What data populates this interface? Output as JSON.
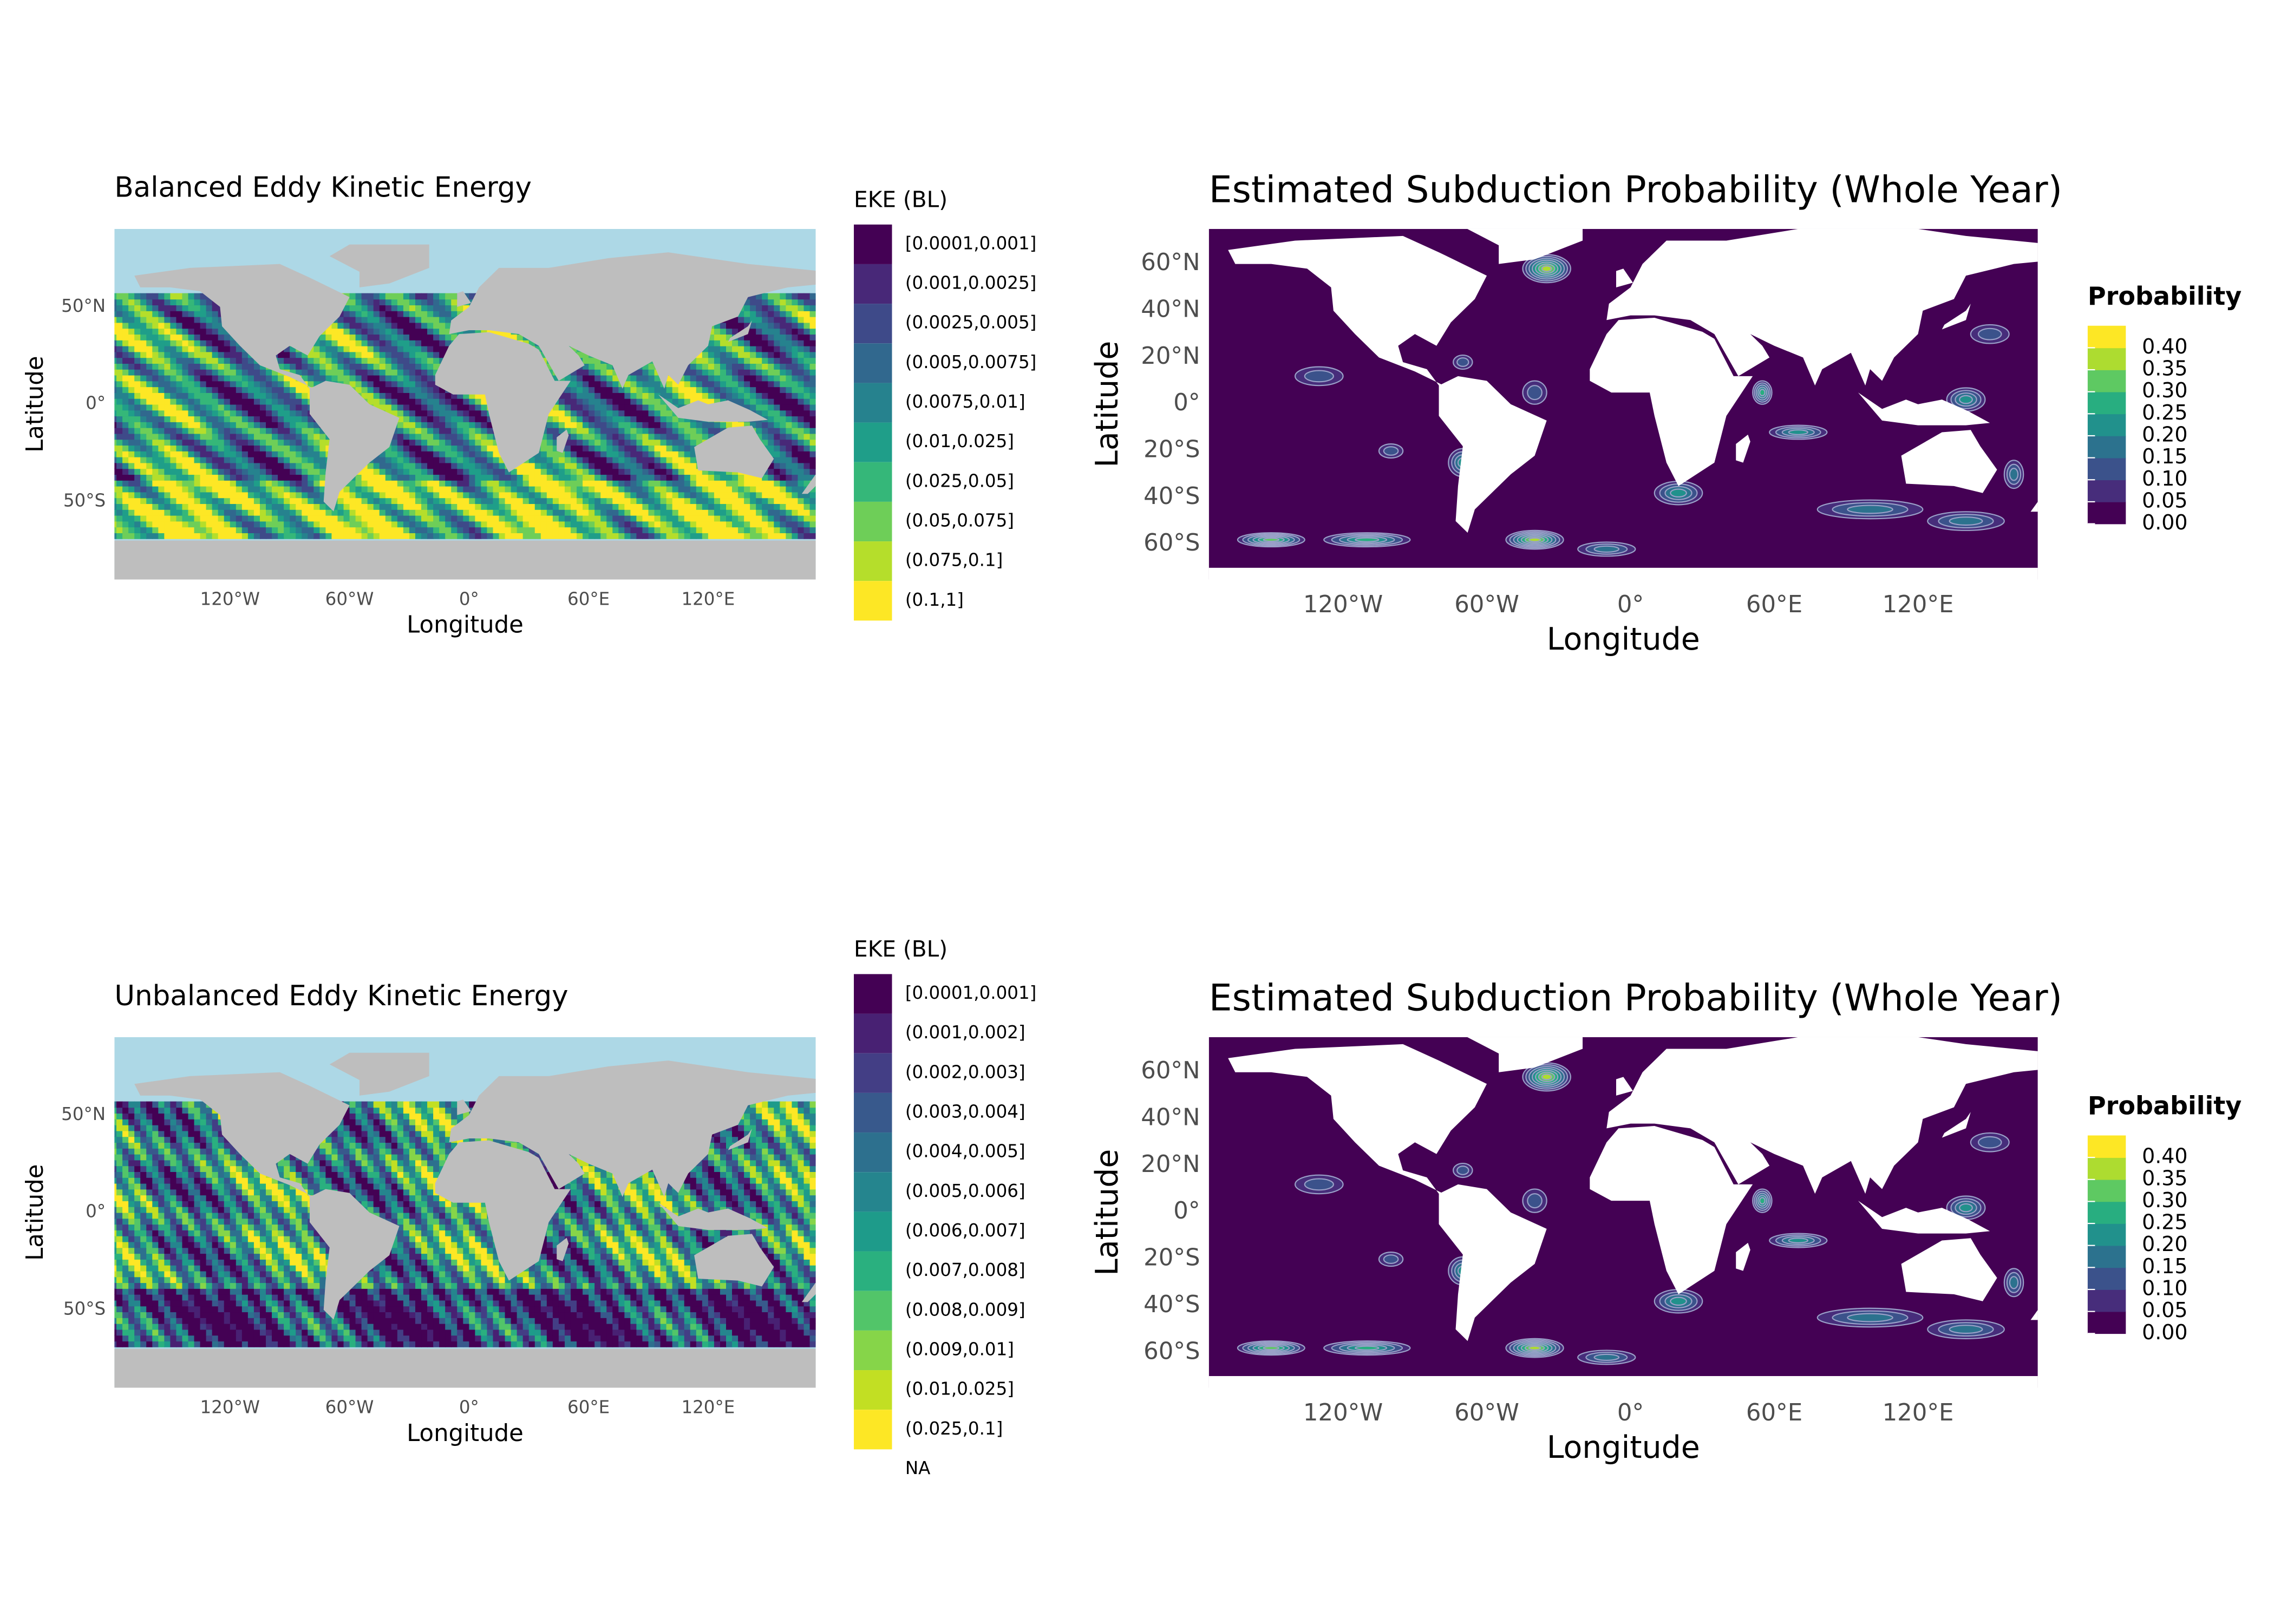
{
  "panels": [
    {
      "type": "raster_map",
      "title": "Balanced Eddy Kinetic Energy",
      "x_label": "Longitude",
      "y_label": "Latitude",
      "xlim": [
        -178,
        174
      ],
      "ylim": [
        -90,
        90
      ],
      "xticks": [
        {
          "value": -120,
          "label": "120°W"
        },
        {
          "value": -60,
          "label": "60°W"
        },
        {
          "value": 0,
          "label": "0°"
        },
        {
          "value": 60,
          "label": "60°E"
        },
        {
          "value": 120,
          "label": "120°E"
        }
      ],
      "yticks": [
        {
          "value": 50,
          "label": "50°N"
        },
        {
          "value": 0,
          "label": "0°"
        },
        {
          "value": -50,
          "label": "50°S"
        }
      ],
      "legend": {
        "title": "EKE (BL)",
        "labels": [
          "[0.0001,0.001]",
          "(0.001,0.0025]",
          "(0.0025,0.005]",
          "(0.005,0.0075]",
          "(0.0075,0.01]",
          "(0.01,0.025]",
          "(0.025,0.05]",
          "(0.05,0.075]",
          "(0.075,0.1]",
          "(0.1,1]"
        ],
        "colors": [
          "#440154",
          "#482878",
          "#3e4a89",
          "#31688e",
          "#26828e",
          "#1f9e89",
          "#35b779",
          "#6ece58",
          "#b5de2b",
          "#fde725"
        ]
      }
    },
    {
      "type": "raster_map",
      "title": "Unbalanced Eddy Kinetic Energy",
      "x_label": "Longitude",
      "y_label": "Latitude",
      "xlim": [
        -178,
        174
      ],
      "ylim": [
        -90,
        90
      ],
      "xticks": [
        {
          "value": -120,
          "label": "120°W"
        },
        {
          "value": -60,
          "label": "60°W"
        },
        {
          "value": 0,
          "label": "0°"
        },
        {
          "value": 60,
          "label": "60°E"
        },
        {
          "value": 120,
          "label": "120°E"
        }
      ],
      "yticks": [
        {
          "value": 50,
          "label": "50°N"
        },
        {
          "value": 0,
          "label": "0°"
        },
        {
          "value": -50,
          "label": "50°S"
        }
      ],
      "legend": {
        "title": "EKE (BL)",
        "labels": [
          "[0.0001,0.001]",
          "(0.001,0.002]",
          "(0.002,0.003]",
          "(0.003,0.004]",
          "(0.004,0.005]",
          "(0.005,0.006]",
          "(0.006,0.007]",
          "(0.007,0.008]",
          "(0.008,0.009]",
          "(0.009,0.01]",
          "(0.01,0.025]",
          "(0.025,0.1]",
          "NA"
        ],
        "colors": [
          "#440154",
          "#482173",
          "#433e85",
          "#38598c",
          "#2d708e",
          "#25858e",
          "#1e9b8a",
          "#2ab07f",
          "#52c569",
          "#86d549",
          "#c2df23",
          "#fde725",
          null
        ]
      }
    },
    {
      "type": "contour_map",
      "title": "Estimated Subduction Probability (Whole Year)",
      "x_label": "Longitude",
      "y_label": "Latitude",
      "xlim": [
        -176,
        170
      ],
      "ylim": [
        -75,
        75
      ],
      "xticks": [
        {
          "value": -120,
          "label": "120°W"
        },
        {
          "value": -60,
          "label": "60°W"
        },
        {
          "value": 0,
          "label": "0°"
        },
        {
          "value": 60,
          "label": "60°E"
        },
        {
          "value": 120,
          "label": "120°E"
        }
      ],
      "yticks": [
        {
          "value": 60,
          "label": "60°N"
        },
        {
          "value": 40,
          "label": "40°N"
        },
        {
          "value": 20,
          "label": "20°N"
        },
        {
          "value": 0,
          "label": "0°"
        },
        {
          "value": -20,
          "label": "20°S"
        },
        {
          "value": -40,
          "label": "40°S"
        },
        {
          "value": -60,
          "label": "60°S"
        }
      ],
      "legend": {
        "title": "Probability",
        "lim": [
          0,
          0.45
        ],
        "ticks": [
          {
            "value": 0.4,
            "label": "0.40"
          },
          {
            "value": 0.35,
            "label": "0.35"
          },
          {
            "value": 0.3,
            "label": "0.30"
          },
          {
            "value": 0.25,
            "label": "0.25"
          },
          {
            "value": 0.2,
            "label": "0.20"
          },
          {
            "value": 0.15,
            "label": "0.15"
          },
          {
            "value": 0.1,
            "label": "0.10"
          },
          {
            "value": 0.05,
            "label": "0.05"
          },
          {
            "value": 0,
            "label": "0.00"
          }
        ],
        "colors": [
          "#440154",
          "#472d7b",
          "#3b528b",
          "#2c728e",
          "#21918c",
          "#28ae80",
          "#5ec962",
          "#addc30",
          "#fde725"
        ]
      }
    },
    {
      "type": "contour_map",
      "title": "Estimated Subduction Probability (Whole Year)",
      "x_label": "Longitude",
      "y_label": "Latitude",
      "xlim": [
        -176,
        170
      ],
      "ylim": [
        -75,
        75
      ],
      "xticks": [
        {
          "value": -120,
          "label": "120°W"
        },
        {
          "value": -60,
          "label": "60°W"
        },
        {
          "value": 0,
          "label": "0°"
        },
        {
          "value": 60,
          "label": "60°E"
        },
        {
          "value": 120,
          "label": "120°E"
        }
      ],
      "yticks": [
        {
          "value": 60,
          "label": "60°N"
        },
        {
          "value": 40,
          "label": "40°N"
        },
        {
          "value": 20,
          "label": "20°N"
        },
        {
          "value": 0,
          "label": "0°"
        },
        {
          "value": -20,
          "label": "20°S"
        },
        {
          "value": -40,
          "label": "40°S"
        },
        {
          "value": -60,
          "label": "60°S"
        }
      ],
      "legend": {
        "title": "Probability",
        "lim": [
          0,
          0.45
        ],
        "ticks": [
          {
            "value": 0.4,
            "label": "0.40"
          },
          {
            "value": 0.35,
            "label": "0.35"
          },
          {
            "value": 0.3,
            "label": "0.30"
          },
          {
            "value": 0.25,
            "label": "0.25"
          },
          {
            "value": 0.2,
            "label": "0.20"
          },
          {
            "value": 0.15,
            "label": "0.15"
          },
          {
            "value": 0.1,
            "label": "0.10"
          },
          {
            "value": 0.05,
            "label": "0.05"
          },
          {
            "value": 0,
            "label": "0.00"
          }
        ],
        "colors": [
          "#440154",
          "#472d7b",
          "#3b528b",
          "#2c728e",
          "#21918c",
          "#28ae80",
          "#5ec962",
          "#addc30",
          "#fde725"
        ]
      }
    }
  ]
}
